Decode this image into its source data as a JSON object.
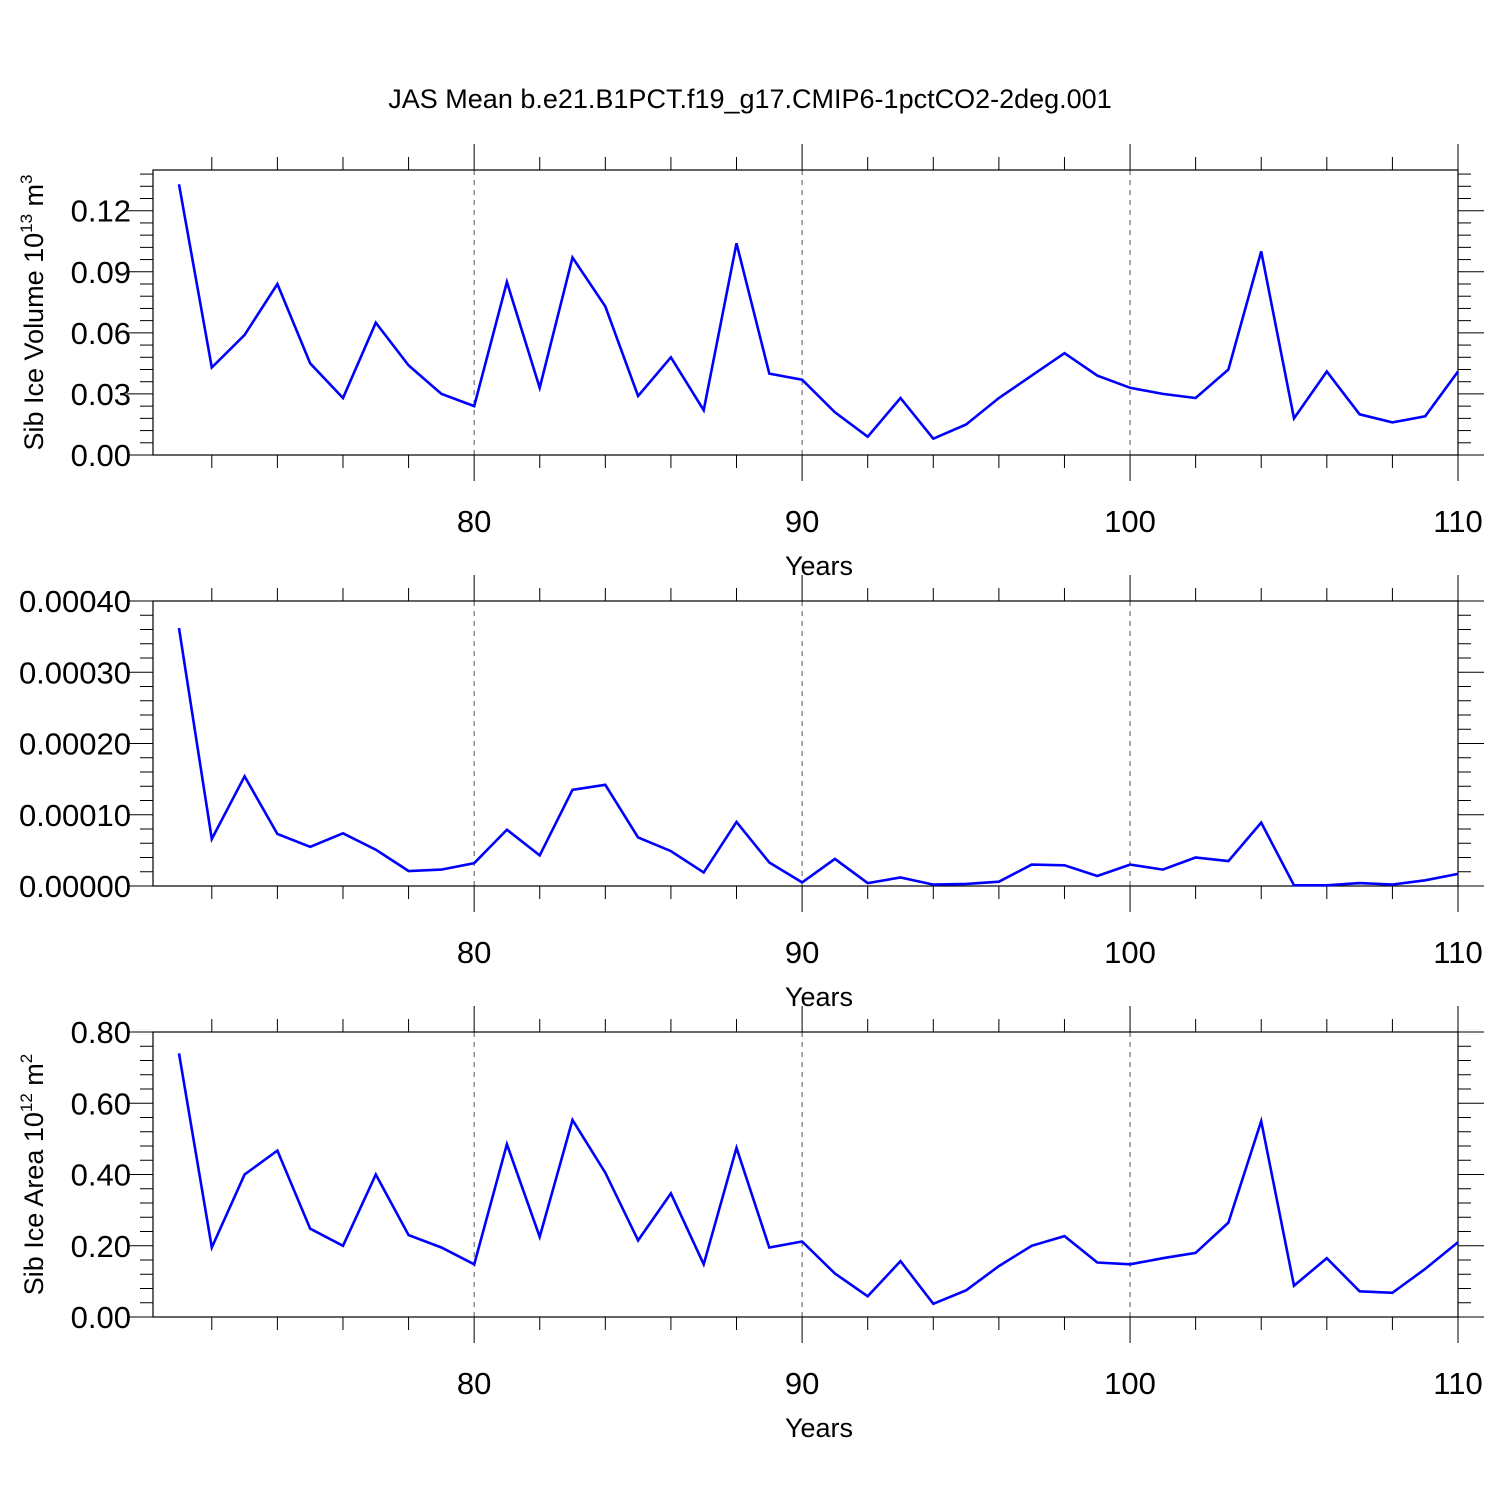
{
  "title": "JAS Mean b.e21.B1PCT.f19_g17.CMIP6-1pctCO2-2deg.001",
  "colors": {
    "line": "#0000ff",
    "axis": "#000000",
    "grid": "#555555",
    "background": "#ffffff"
  },
  "chart_data": [
    {
      "type": "line",
      "xlabel": "Years",
      "ylabel": {
        "main": "Sib Ice Volume 10",
        "exponent": "13",
        "unit": " m",
        "unit_exponent": "3"
      },
      "xlim": [
        71,
        110
      ],
      "ylim": [
        0,
        0.14
      ],
      "xticks": [
        80,
        90,
        100,
        110
      ],
      "xtick_labels": [
        "80",
        "90",
        "100",
        "110"
      ],
      "yticks": [
        0.0,
        0.03,
        0.06,
        0.09,
        0.12
      ],
      "ytick_labels": [
        "0.00",
        "0.03",
        "0.06",
        "0.09",
        "0.12"
      ],
      "grid": "dashed vertical at x=80,90,100",
      "x": [
        71,
        72,
        73,
        74,
        75,
        76,
        77,
        78,
        79,
        80,
        81,
        82,
        83,
        84,
        85,
        86,
        87,
        88,
        89,
        90,
        91,
        92,
        93,
        94,
        95,
        96,
        97,
        98,
        99,
        100,
        101,
        102,
        103,
        104,
        105,
        106,
        107,
        108,
        109,
        110
      ],
      "values": [
        0.133,
        0.043,
        0.059,
        0.084,
        0.045,
        0.028,
        0.065,
        0.044,
        0.03,
        0.024,
        0.085,
        0.033,
        0.097,
        0.073,
        0.029,
        0.048,
        0.022,
        0.104,
        0.04,
        0.037,
        0.021,
        0.009,
        0.028,
        0.008,
        0.015,
        0.028,
        0.039,
        0.05,
        0.039,
        0.033,
        0.03,
        0.028,
        0.042,
        0.1,
        0.018,
        0.041,
        0.02,
        0.016,
        0.019,
        0.041
      ]
    },
    {
      "type": "line",
      "xlabel": "Years",
      "ylabel": null,
      "xlim": [
        71,
        110
      ],
      "ylim": [
        0,
        0.0004
      ],
      "xticks": [
        80,
        90,
        100,
        110
      ],
      "xtick_labels": [
        "80",
        "90",
        "100",
        "110"
      ],
      "yticks": [
        0.0,
        0.0001,
        0.0002,
        0.0003,
        0.0004
      ],
      "ytick_labels": [
        "0.00000",
        "0.00010",
        "0.00020",
        "0.00030",
        "0.00040"
      ],
      "grid": "dashed vertical at x=80,90,100",
      "x": [
        71,
        72,
        73,
        74,
        75,
        76,
        77,
        78,
        79,
        80,
        81,
        82,
        83,
        84,
        85,
        86,
        87,
        88,
        89,
        90,
        91,
        92,
        93,
        94,
        95,
        96,
        97,
        98,
        99,
        100,
        101,
        102,
        103,
        104,
        105,
        106,
        107,
        108,
        109,
        110
      ],
      "values": [
        0.000362,
        6.6e-05,
        0.000154,
        7.3e-05,
        5.5e-05,
        7.4e-05,
        5.1e-05,
        2.1e-05,
        2.3e-05,
        3.2e-05,
        7.9e-05,
        4.3e-05,
        0.000135,
        0.000142,
        6.8e-05,
        4.9e-05,
        1.9e-05,
        9e-05,
        3.3e-05,
        5e-06,
        3.8e-05,
        4e-06,
        1.2e-05,
        2e-06,
        3e-06,
        6e-06,
        3e-05,
        2.9e-05,
        1.4e-05,
        3e-05,
        2.3e-05,
        4e-05,
        3.5e-05,
        8.9e-05,
        1e-06,
        1e-06,
        4e-06,
        2e-06,
        8e-06,
        1.7e-05
      ]
    },
    {
      "type": "line",
      "xlabel": "Years",
      "ylabel": {
        "main": "Sib Ice Area 10",
        "exponent": "12",
        "unit": " m",
        "unit_exponent": "2"
      },
      "xlim": [
        71,
        110
      ],
      "ylim": [
        0,
        0.8
      ],
      "xticks": [
        80,
        90,
        100,
        110
      ],
      "xtick_labels": [
        "80",
        "90",
        "100",
        "110"
      ],
      "yticks": [
        0.0,
        0.2,
        0.4,
        0.6,
        0.8
      ],
      "ytick_labels": [
        "0.00",
        "0.20",
        "0.40",
        "0.60",
        "0.80"
      ],
      "grid": "dashed vertical at x=80,90,100",
      "x": [
        71,
        72,
        73,
        74,
        75,
        76,
        77,
        78,
        79,
        80,
        81,
        82,
        83,
        84,
        85,
        86,
        87,
        88,
        89,
        90,
        91,
        92,
        93,
        94,
        95,
        96,
        97,
        98,
        99,
        100,
        101,
        102,
        103,
        104,
        105,
        106,
        107,
        108,
        109,
        110
      ],
      "values": [
        0.74,
        0.195,
        0.4,
        0.467,
        0.248,
        0.2,
        0.4,
        0.23,
        0.195,
        0.148,
        0.485,
        0.225,
        0.553,
        0.405,
        0.215,
        0.347,
        0.148,
        0.475,
        0.195,
        0.212,
        0.122,
        0.058,
        0.157,
        0.037,
        0.075,
        0.143,
        0.2,
        0.227,
        0.153,
        0.148,
        0.165,
        0.18,
        0.265,
        0.55,
        0.088,
        0.165,
        0.072,
        0.068,
        0.135,
        0.21
      ]
    }
  ]
}
